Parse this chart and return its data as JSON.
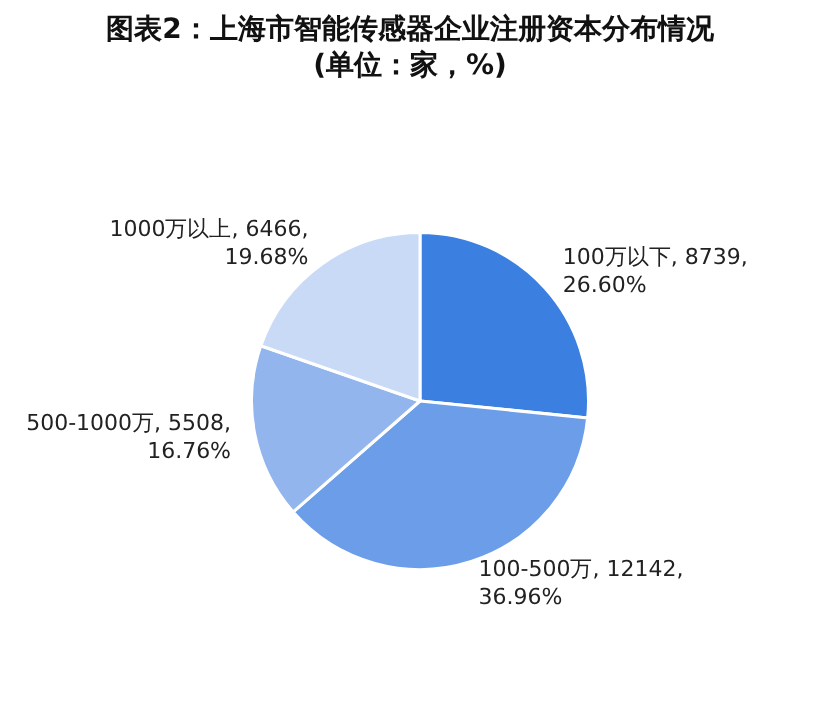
{
  "chart_data": {
    "type": "pie",
    "title": "图表2：上海市智能传感器企业注册资本分布情况",
    "subtitle": "(单位：家，%)",
    "categories": [
      "100万以下",
      "100-500万",
      "500-1000万",
      "1000万以上"
    ],
    "values": [
      26.6,
      36.96,
      16.76,
      19.68
    ],
    "colors": [
      "#3b7fe0",
      "#6c9de8",
      "#92b5ee",
      "#c8daf6"
    ],
    "value_labels": [
      "8739, 26.60%",
      "12142, 36.96%",
      "5508, 16.76%",
      "6466, 19.68%"
    ],
    "legend": false
  }
}
